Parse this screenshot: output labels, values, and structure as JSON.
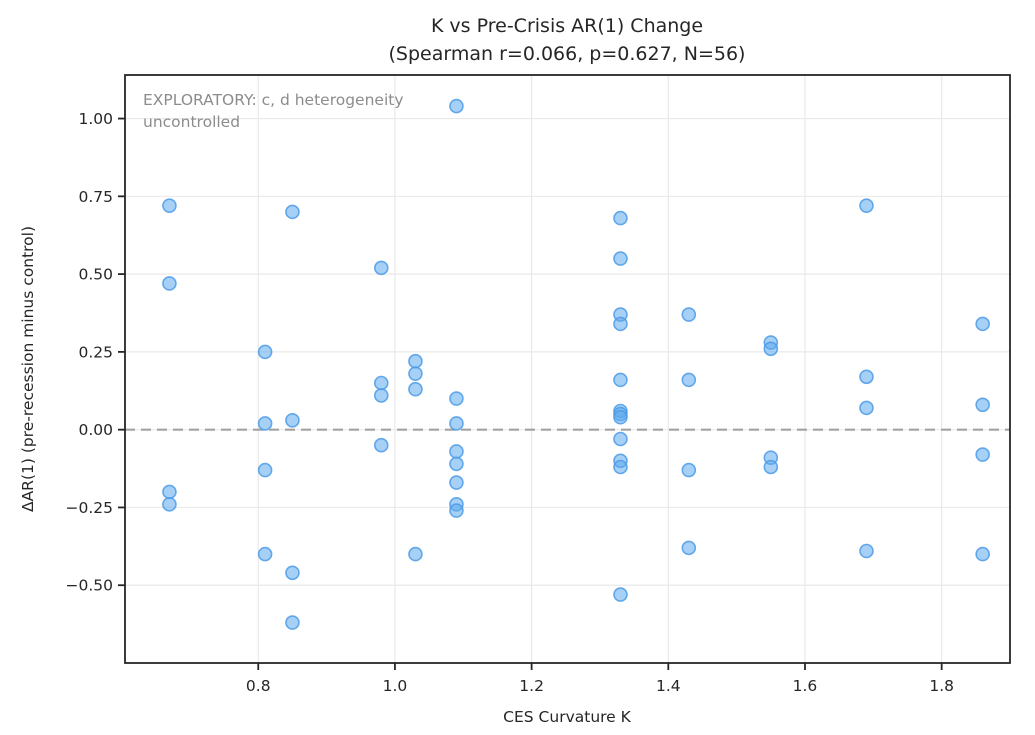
{
  "chart_data": {
    "type": "scatter",
    "title": "K vs Pre-Crisis AR(1) Change",
    "subtitle": "(Spearman r=0.066, p=0.627, N=56)",
    "xlabel": "CES Curvature K",
    "ylabel": "ΔAR(1) (pre-recession minus control)",
    "annotation_line1": "EXPLORATORY: c, d heterogeneity",
    "annotation_line2": "uncontrolled",
    "stats": {
      "spearman_r": 0.066,
      "p_value": 0.627,
      "n": 56
    },
    "xlim": [
      0.605,
      1.9
    ],
    "ylim": [
      -0.75,
      1.14
    ],
    "xticks": [
      0.8,
      1.0,
      1.2,
      1.4,
      1.6,
      1.8
    ],
    "xtick_labels": [
      "0.8",
      "1.0",
      "1.2",
      "1.4",
      "1.6",
      "1.8"
    ],
    "yticks": [
      -0.5,
      -0.25,
      0.0,
      0.25,
      0.5,
      0.75,
      1.0
    ],
    "ytick_labels": [
      "−0.50",
      "−0.25",
      "0.00",
      "0.25",
      "0.50",
      "0.75",
      "1.00"
    ],
    "grid": true,
    "legend": "none",
    "zero_line": {
      "y": 0.0,
      "style": "dashed",
      "color": "#a3a3a3"
    },
    "colors": {
      "marker_fill": "#5da9ec",
      "marker_fill_opacity": 0.55,
      "marker_stroke": "#4c9be8",
      "marker_stroke_opacity": 0.85,
      "grid": "#e9e9e9",
      "spine": "#262626",
      "annotation_text": "#8c8c8c"
    },
    "marker_radius": 6.5,
    "points": [
      [
        0.67,
        0.72
      ],
      [
        0.67,
        0.47
      ],
      [
        0.67,
        -0.2
      ],
      [
        0.67,
        -0.24
      ],
      [
        0.81,
        0.25
      ],
      [
        0.81,
        0.02
      ],
      [
        0.81,
        -0.13
      ],
      [
        0.81,
        -0.4
      ],
      [
        0.85,
        0.7
      ],
      [
        0.85,
        0.03
      ],
      [
        0.85,
        -0.46
      ],
      [
        0.85,
        -0.62
      ],
      [
        0.98,
        0.52
      ],
      [
        0.98,
        0.15
      ],
      [
        0.98,
        0.11
      ],
      [
        0.98,
        -0.05
      ],
      [
        1.03,
        0.22
      ],
      [
        1.03,
        0.18
      ],
      [
        1.03,
        0.13
      ],
      [
        1.03,
        -0.4
      ],
      [
        1.09,
        1.04
      ],
      [
        1.09,
        0.1
      ],
      [
        1.09,
        0.02
      ],
      [
        1.09,
        -0.07
      ],
      [
        1.09,
        -0.11
      ],
      [
        1.09,
        -0.17
      ],
      [
        1.09,
        -0.24
      ],
      [
        1.09,
        -0.26
      ],
      [
        1.33,
        0.68
      ],
      [
        1.33,
        0.55
      ],
      [
        1.33,
        0.37
      ],
      [
        1.33,
        0.34
      ],
      [
        1.33,
        0.16
      ],
      [
        1.33,
        0.06
      ],
      [
        1.33,
        0.05
      ],
      [
        1.33,
        0.04
      ],
      [
        1.33,
        -0.03
      ],
      [
        1.33,
        -0.1
      ],
      [
        1.33,
        -0.12
      ],
      [
        1.33,
        -0.53
      ],
      [
        1.43,
        0.37
      ],
      [
        1.43,
        0.16
      ],
      [
        1.43,
        -0.13
      ],
      [
        1.43,
        -0.38
      ],
      [
        1.55,
        0.28
      ],
      [
        1.55,
        0.26
      ],
      [
        1.55,
        -0.09
      ],
      [
        1.55,
        -0.12
      ],
      [
        1.69,
        0.72
      ],
      [
        1.69,
        0.17
      ],
      [
        1.69,
        0.07
      ],
      [
        1.69,
        -0.39
      ],
      [
        1.86,
        0.34
      ],
      [
        1.86,
        0.08
      ],
      [
        1.86,
        -0.08
      ],
      [
        1.86,
        -0.4
      ]
    ]
  }
}
